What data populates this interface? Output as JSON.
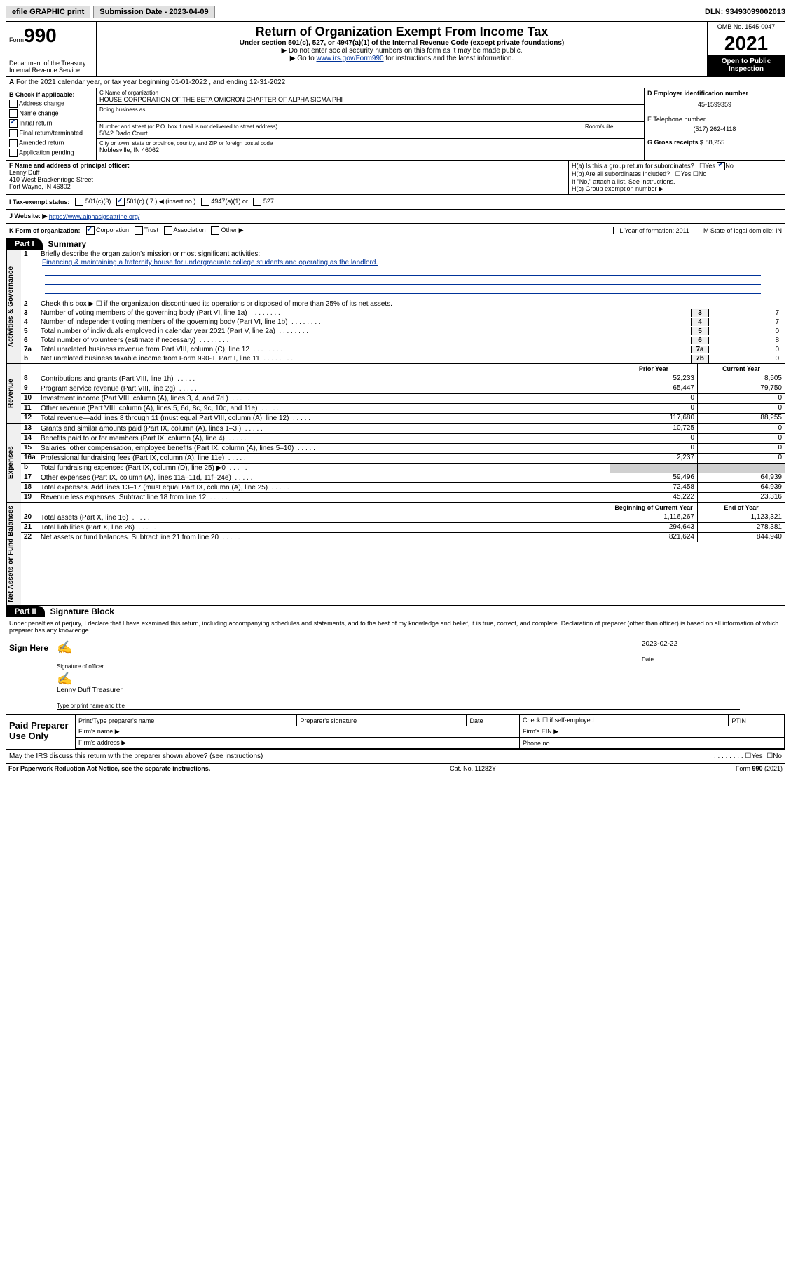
{
  "top_bar": {
    "efile": "efile GRAPHIC print",
    "submission_label": "Submission Date - 2023-04-09",
    "dln": "DLN: 93493099002013"
  },
  "header": {
    "form_word": "Form",
    "form_num": "990",
    "dept": "Department of the Treasury\nInternal Revenue Service",
    "title": "Return of Organization Exempt From Income Tax",
    "subtitle": "Under section 501(c), 527, or 4947(a)(1) of the Internal Revenue Code (except private foundations)",
    "sub2a": "▶ Do not enter social security numbers on this form as it may be made public.",
    "sub2b_pre": "▶ Go to ",
    "sub2b_link": "www.irs.gov/Form990",
    "sub2b_post": " for instructions and the latest information.",
    "omb": "OMB No. 1545-0047",
    "year": "2021",
    "open": "Open to Public Inspection"
  },
  "row_a": "For the 2021 calendar year, or tax year beginning 01-01-2022   , and ending 12-31-2022",
  "col_b": {
    "label": "B Check if applicable:",
    "items": [
      "Address change",
      "Name change",
      "Initial return",
      "Final return/terminated",
      "Amended return",
      "Application pending"
    ],
    "checked_idx": 2
  },
  "org": {
    "c_label": "C Name of organization",
    "name": "HOUSE CORPORATION OF THE BETA OMICRON CHAPTER OF ALPHA SIGMA PHI",
    "dba_label": "Doing business as",
    "street_label": "Number and street (or P.O. box if mail is not delivered to street address)",
    "room_label": "Room/suite",
    "street": "5842 Dado Court",
    "city_label": "City or town, state or province, country, and ZIP or foreign postal code",
    "city": "Noblesville, IN  46062"
  },
  "right": {
    "d_label": "D Employer identification number",
    "ein": "45-1599359",
    "e_label": "E Telephone number",
    "phone": "(517) 262-4118",
    "g_label": "G Gross receipts $",
    "gross": "88,255"
  },
  "row_f": {
    "f_label": "F Name and address of principal officer:",
    "name": "Lenny Duff",
    "addr1": "410 West Brackenridge Street",
    "addr2": "Fort Wayne, IN  46802",
    "ha": "H(a)  Is this a group return for subordinates?",
    "ha_no": true,
    "hb": "H(b)  Are all subordinates included?",
    "hc": "H(c)  Group exemption number ▶",
    "hb_note": "If \"No,\" attach a list. See instructions."
  },
  "tax_status": {
    "label": "I   Tax-exempt status:",
    "opts": [
      "501(c)(3)",
      "501(c) ( 7 ) ◀ (insert no.)",
      "4947(a)(1) or",
      "527"
    ],
    "checked_idx": 1
  },
  "website": {
    "label": "J   Website: ▶",
    "url": "https://www.alphasigsattrine.org/"
  },
  "k_row": {
    "label": "K Form of organization:",
    "opts": [
      "Corporation",
      "Trust",
      "Association",
      "Other ▶"
    ],
    "checked_idx": 0,
    "l": "L Year of formation: 2011",
    "m": "M State of legal domicile: IN"
  },
  "part1": {
    "tab": "Part I",
    "title": "Summary",
    "line1_label": "Briefly describe the organization's mission or most significant activities:",
    "line1_text": "Financing & maintaining a fraternity house for undergraduate college students and operating as the landlord.",
    "line2": "Check this box ▶ ☐  if the organization discontinued its operations or disposed of more than 25% of its net assets.",
    "gov_lines": [
      {
        "n": "3",
        "t": "Number of voting members of the governing body (Part VI, line 1a)",
        "v": "7"
      },
      {
        "n": "4",
        "t": "Number of independent voting members of the governing body (Part VI, line 1b)",
        "v": "7"
      },
      {
        "n": "5",
        "t": "Total number of individuals employed in calendar year 2021 (Part V, line 2a)",
        "v": "0"
      },
      {
        "n": "6",
        "t": "Total number of volunteers (estimate if necessary)",
        "v": "8"
      },
      {
        "n": "7a",
        "t": "Total unrelated business revenue from Part VIII, column (C), line 12",
        "v": "0"
      },
      {
        "n": "b",
        "t": "Net unrelated business taxable income from Form 990-T, Part I, line 11",
        "box": "7b",
        "v": "0"
      }
    ],
    "prior_hdr": "Prior Year",
    "curr_hdr": "Current Year",
    "rev_lines": [
      {
        "n": "8",
        "t": "Contributions and grants (Part VIII, line 1h)",
        "p": "52,233",
        "c": "8,505"
      },
      {
        "n": "9",
        "t": "Program service revenue (Part VIII, line 2g)",
        "p": "65,447",
        "c": "79,750"
      },
      {
        "n": "10",
        "t": "Investment income (Part VIII, column (A), lines 3, 4, and 7d )",
        "p": "0",
        "c": "0"
      },
      {
        "n": "11",
        "t": "Other revenue (Part VIII, column (A), lines 5, 6d, 8c, 9c, 10c, and 11e)",
        "p": "0",
        "c": "0"
      },
      {
        "n": "12",
        "t": "Total revenue—add lines 8 through 11 (must equal Part VIII, column (A), line 12)",
        "p": "117,680",
        "c": "88,255"
      }
    ],
    "exp_lines": [
      {
        "n": "13",
        "t": "Grants and similar amounts paid (Part IX, column (A), lines 1–3 )",
        "p": "10,725",
        "c": "0"
      },
      {
        "n": "14",
        "t": "Benefits paid to or for members (Part IX, column (A), line 4)",
        "p": "0",
        "c": "0"
      },
      {
        "n": "15",
        "t": "Salaries, other compensation, employee benefits (Part IX, column (A), lines 5–10)",
        "p": "0",
        "c": "0"
      },
      {
        "n": "16a",
        "t": "Professional fundraising fees (Part IX, column (A), line 11e)",
        "p": "2,237",
        "c": "0"
      },
      {
        "n": "b",
        "t": "Total fundraising expenses (Part IX, column (D), line 25) ▶0",
        "p": "",
        "c": "",
        "shade": true
      },
      {
        "n": "17",
        "t": "Other expenses (Part IX, column (A), lines 11a–11d, 11f–24e)",
        "p": "59,496",
        "c": "64,939"
      },
      {
        "n": "18",
        "t": "Total expenses. Add lines 13–17 (must equal Part IX, column (A), line 25)",
        "p": "72,458",
        "c": "64,939"
      },
      {
        "n": "19",
        "t": "Revenue less expenses. Subtract line 18 from line 12",
        "p": "45,222",
        "c": "23,316"
      }
    ],
    "na_hdr_p": "Beginning of Current Year",
    "na_hdr_c": "End of Year",
    "na_lines": [
      {
        "n": "20",
        "t": "Total assets (Part X, line 16)",
        "p": "1,116,267",
        "c": "1,123,321"
      },
      {
        "n": "21",
        "t": "Total liabilities (Part X, line 26)",
        "p": "294,643",
        "c": "278,381"
      },
      {
        "n": "22",
        "t": "Net assets or fund balances. Subtract line 21 from line 20",
        "p": "821,624",
        "c": "844,940"
      }
    ]
  },
  "part2": {
    "tab": "Part II",
    "title": "Signature Block",
    "decl": "Under penalties of perjury, I declare that I have examined this return, including accompanying schedules and statements, and to the best of my knowledge and belief, it is true, correct, and complete. Declaration of preparer (other than officer) is based on all information of which preparer has any knowledge.",
    "sign_here": "Sign Here",
    "sig_officer": "Signature of officer",
    "date": "2023-02-22",
    "date_lbl": "Date",
    "name_title": "Lenny Duff Treasurer",
    "name_title_lbl": "Type or print name and title",
    "paid": "Paid Preparer Use Only",
    "prep_hdrs": [
      "Print/Type preparer's name",
      "Preparer's signature",
      "Date",
      "Check ☐ if self-employed",
      "PTIN"
    ],
    "firm_name": "Firm's name   ▶",
    "firm_ein": "Firm's EIN ▶",
    "firm_addr": "Firm's address ▶",
    "phone": "Phone no.",
    "discuss": "May the IRS discuss this return with the preparer shown above? (see instructions)"
  },
  "footer": {
    "left": "For Paperwork Reduction Act Notice, see the separate instructions.",
    "mid": "Cat. No. 11282Y",
    "right": "Form 990 (2021)"
  },
  "sidelabels": {
    "gov": "Activities & Governance",
    "rev": "Revenue",
    "exp": "Expenses",
    "na": "Net Assets or Fund Balances"
  }
}
